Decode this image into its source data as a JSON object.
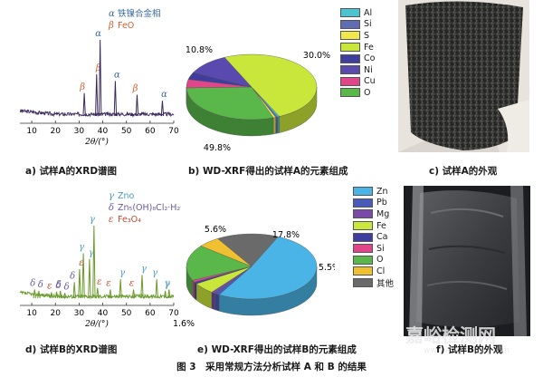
{
  "figure_caption": "图 3　采用常规方法分析试样 A 和 B 的结果",
  "panels": {
    "a": {
      "caption": "a) 试样A的XRD谱图"
    },
    "b": {
      "caption": "b) WD-XRF得出的试样A的元素组成"
    },
    "c": {
      "caption": "c) 试样A的外观"
    },
    "d": {
      "caption": "d) 试样B的XRD谱图"
    },
    "e": {
      "caption": "e) WD-XRF得出的试样B的元素组成"
    },
    "f": {
      "caption": "f) 试样B的外观"
    }
  },
  "watermark": {
    "cn": "嘉峪检测网",
    "en": "www.AnyTesting.com"
  },
  "chart_data": [
    {
      "id": "a",
      "type": "line",
      "xlabel": "2θ/(°)",
      "xlim": [
        5,
        70
      ],
      "xticks": [
        10,
        20,
        30,
        40,
        50,
        60,
        70
      ],
      "color": "#3a2a5a",
      "legend": [
        {
          "symbol": "α",
          "text": "铁镍合金相",
          "color": "#3a6aa0"
        },
        {
          "symbol": "β",
          "text": "FeO",
          "color": "#d06030"
        }
      ],
      "peaks": [
        {
          "x": 32.2,
          "h": 0.3,
          "label": "β",
          "label_color": "#d06030"
        },
        {
          "x": 37.4,
          "h": 0.55,
          "label": "β",
          "label_color": "#d06030"
        },
        {
          "x": 38.9,
          "h": 1.0,
          "label": "α",
          "label_color": "#3a6aa0"
        },
        {
          "x": 45.3,
          "h": 0.46,
          "label": "α",
          "label_color": "#3a6aa0"
        },
        {
          "x": 54.5,
          "h": 0.28,
          "label": "β",
          "label_color": "#d06030"
        },
        {
          "x": 65.2,
          "h": 0.2,
          "label": "α",
          "label_color": "#3a6aa0"
        }
      ]
    },
    {
      "id": "b",
      "type": "pie",
      "legend": [
        "Al",
        "Si",
        "S",
        "Fe",
        "Co",
        "Ni",
        "Cu",
        "O"
      ],
      "slices": [
        {
          "name": "Fe",
          "value": 49.8,
          "label": "49.8%",
          "color": "#c9e63a"
        },
        {
          "name": "Al",
          "value": 0.5,
          "label": "",
          "color": "#4bc4cf"
        },
        {
          "name": "Si",
          "value": 0.5,
          "label": "",
          "color": "#5f6bb3"
        },
        {
          "name": "S",
          "value": 0.6,
          "label": "",
          "color": "#f1e84b"
        },
        {
          "name": "O",
          "value": 30.0,
          "label": "30.0%",
          "color": "#5ab84a"
        },
        {
          "name": "Cu",
          "value": 4.2,
          "label": "",
          "color": "#e0468a"
        },
        {
          "name": "Co",
          "value": 3.6,
          "label": "",
          "color": "#3f3d9e"
        },
        {
          "name": "Ni",
          "value": 10.8,
          "label": "10.8%",
          "color": "#5a4ab0"
        }
      ],
      "legend_colors": [
        "#4bc4cf",
        "#5f6bb3",
        "#f1e84b",
        "#c9e63a",
        "#3f3d9e",
        "#5a4ab0",
        "#e0468a",
        "#5ab84a"
      ]
    },
    {
      "id": "d",
      "type": "line",
      "xlabel": "2θ/(°)",
      "xlim": [
        5,
        70
      ],
      "xticks": [
        10,
        20,
        30,
        40,
        50,
        60,
        70
      ],
      "color": "#6a9a2a",
      "legend": [
        {
          "symbol": "γ",
          "text": "Zno",
          "color": "#4a9ac0"
        },
        {
          "symbol": "δ",
          "text": "Zn₅(OH)₈Cl₂·H₂O",
          "color": "#6a5aa0"
        },
        {
          "symbol": "ε",
          "text": "Fe₃O₄",
          "color": "#c04a30"
        }
      ],
      "peaks": [
        {
          "x": 11.2,
          "h": 0.12,
          "label": "δ",
          "label_color": "#6a5aa0"
        },
        {
          "x": 13.0,
          "h": 0.1,
          "label": "δ",
          "label_color": "#6a5aa0"
        },
        {
          "x": 18.3,
          "h": 0.08,
          "label": "ε",
          "label_color": "#c04a30"
        },
        {
          "x": 20.5,
          "h": 0.09,
          "label": "δ",
          "label_color": "#6a5aa0"
        },
        {
          "x": 22.1,
          "h": 0.1,
          "label": "δ",
          "label_color": "#6a5aa0"
        },
        {
          "x": 24.0,
          "h": 0.07,
          "label": "δ",
          "label_color": "#6a5aa0"
        },
        {
          "x": 28.0,
          "h": 0.22,
          "label": "δ",
          "label_color": "#6a5aa0"
        },
        {
          "x": 30.2,
          "h": 0.4,
          "label": "ε",
          "label_color": "#c04a30"
        },
        {
          "x": 31.8,
          "h": 0.62,
          "label": "γ",
          "label_color": "#4a9ac0"
        },
        {
          "x": 34.4,
          "h": 0.54,
          "label": "γ",
          "label_color": "#4a9ac0"
        },
        {
          "x": 36.3,
          "h": 1.0,
          "label": "γ",
          "label_color": "#4a9ac0"
        },
        {
          "x": 37.8,
          "h": 0.14,
          "label": "ε",
          "label_color": "#c04a30"
        },
        {
          "x": 43.2,
          "h": 0.12,
          "label": "ε",
          "label_color": "#c04a30"
        },
        {
          "x": 47.5,
          "h": 0.26,
          "label": "γ",
          "label_color": "#4a9ac0"
        },
        {
          "x": 53.0,
          "h": 0.12,
          "label": "ε",
          "label_color": "#c04a30"
        },
        {
          "x": 56.6,
          "h": 0.32,
          "label": "γ",
          "label_color": "#4a9ac0"
        },
        {
          "x": 62.8,
          "h": 0.26,
          "label": "γ",
          "label_color": "#4a9ac0"
        },
        {
          "x": 66.4,
          "h": 0.1,
          "label": "γ",
          "label_color": "#4a9ac0"
        },
        {
          "x": 68.0,
          "h": 0.12,
          "label": "γ",
          "label_color": "#4a9ac0"
        }
      ]
    },
    {
      "id": "e",
      "type": "pie",
      "legend": [
        "Zn",
        "Pb",
        "Mg",
        "Fe",
        "Ca",
        "Si",
        "O",
        "Cl",
        "其他"
      ],
      "slices": [
        {
          "name": "Zn",
          "value": 51.6,
          "label": "51.6%",
          "color": "#4ab4e6"
        },
        {
          "name": "Pb",
          "value": 1.2,
          "label": "",
          "color": "#4a5ab8"
        },
        {
          "name": "Mg",
          "value": 1.0,
          "label": "",
          "color": "#7a4aa8"
        },
        {
          "name": "Fe",
          "value": 5.6,
          "label": "5.6%",
          "color": "#c9e63a"
        },
        {
          "name": "Ca",
          "value": 0.9,
          "label": "",
          "color": "#3f3d9e"
        },
        {
          "name": "Si",
          "value": 1.0,
          "label": "",
          "color": "#e0468a"
        },
        {
          "name": "O",
          "value": 17.8,
          "label": "17.8%",
          "color": "#5ab84a"
        },
        {
          "name": "Cl",
          "value": 5.5,
          "label": "5.5%",
          "color": "#f0c030"
        },
        {
          "name": "其他",
          "value": 15.4,
          "label": "",
          "color": "#6a6a6a"
        }
      ],
      "legend_colors": [
        "#4ab4e6",
        "#4a5ab8",
        "#7a4aa8",
        "#c9e63a",
        "#3f3d9e",
        "#e0468a",
        "#5ab84a",
        "#f0c030",
        "#6a6a6a"
      ]
    }
  ]
}
